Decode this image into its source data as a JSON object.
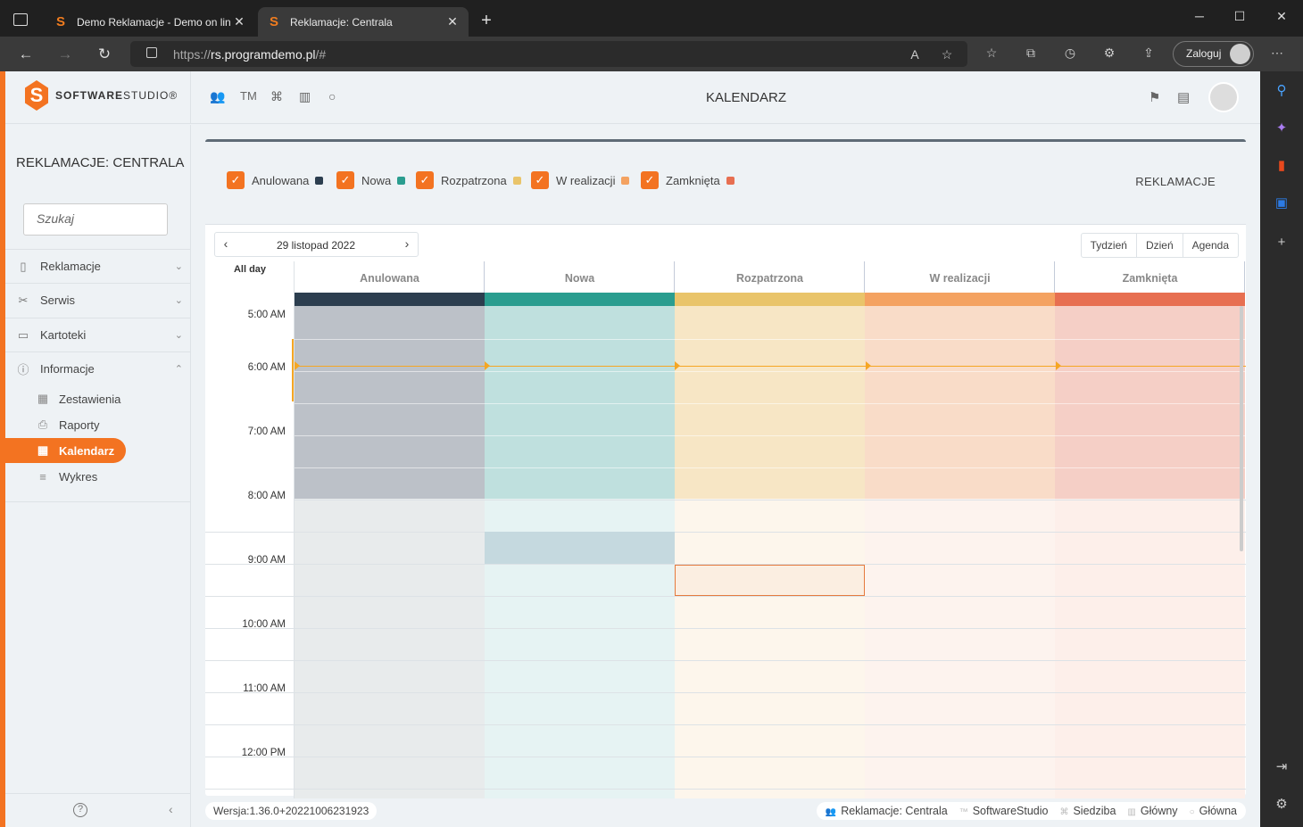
{
  "browser": {
    "tabs": [
      {
        "title": "Demo Reklamacje - Demo on lin",
        "favicon": "S"
      },
      {
        "title": "Reklamacje: Centrala",
        "favicon": "S"
      }
    ],
    "url_scheme": "https://",
    "url_host": "rs.programdemo.pl",
    "url_path": "/#",
    "login_label": "Zaloguj"
  },
  "app": {
    "logo_bold": "SOFTWARE",
    "logo_light": "STUDIO",
    "logo_mark": "®",
    "page_title": "KALENDARZ",
    "top_icons": [
      "users-icon",
      "tm-label",
      "org-icon",
      "building-icon",
      "circle-icon"
    ],
    "tm_label": "TM"
  },
  "sidebar": {
    "title": "REKLAMACJE: CENTRALA",
    "search_placeholder": "Szukaj",
    "items": [
      {
        "label": "Reklamacje",
        "icon": "document-icon",
        "chevron": "⌄"
      },
      {
        "label": "Serwis",
        "icon": "tools-icon",
        "chevron": "⌄"
      },
      {
        "label": "Kartoteki",
        "icon": "folder-icon",
        "chevron": "⌄"
      },
      {
        "label": "Informacje",
        "icon": "info-icon",
        "chevron": "⌃"
      }
    ],
    "subitems": [
      {
        "label": "Zestawienia",
        "icon": "table-icon"
      },
      {
        "label": "Raporty",
        "icon": "printer-icon"
      },
      {
        "label": "Kalendarz",
        "icon": "calendar-icon",
        "active": true
      },
      {
        "label": "Wykres",
        "icon": "chart-icon"
      }
    ]
  },
  "filters": {
    "items": [
      {
        "label": "Anulowana",
        "color": "#2c3e4f"
      },
      {
        "label": "Nowa",
        "color": "#2a9d8f"
      },
      {
        "label": "Rozpatrzona",
        "color": "#e9c46a"
      },
      {
        "label": "W realizacji",
        "color": "#f4a261"
      },
      {
        "label": "Zamknięta",
        "color": "#e76f51"
      }
    ],
    "section_label": "REKLAMACJE"
  },
  "calendar": {
    "date": "29 listopad 2022",
    "prev": "‹",
    "next": "›",
    "views": [
      "Tydzień",
      "Dzień",
      "Agenda"
    ],
    "all_day": "All day",
    "times": [
      "5:00 AM",
      "6:00 AM",
      "7:00 AM",
      "8:00 AM",
      "9:00 AM",
      "10:00 AM",
      "11:00 AM",
      "12:00 PM"
    ],
    "columns": [
      {
        "name": "Anulowana",
        "bar": "#2c3e4f",
        "busy": "#bcc1c8",
        "free": "#e8ebec"
      },
      {
        "name": "Nowa",
        "bar": "#2a9d8f",
        "busy": "#bfe0de",
        "free": "#e6f3f3"
      },
      {
        "name": "Rozpatrzona",
        "bar": "#e9c46a",
        "busy": "#f7e6c5",
        "free": "#fdf6ec"
      },
      {
        "name": "W realizacji",
        "bar": "#f4a261",
        "busy": "#f9dcc8",
        "free": "#fdf3ee"
      },
      {
        "name": "Zamknięta",
        "bar": "#e76f51",
        "busy": "#f5cfc6",
        "free": "#fdefea"
      }
    ]
  },
  "footer": {
    "version": "Wersja:1.36.0+20221006231923",
    "crumbs": [
      "Reklamacje: Centrala",
      "SoftwareStudio",
      "Siedziba",
      "Główny",
      "Główna"
    ]
  }
}
